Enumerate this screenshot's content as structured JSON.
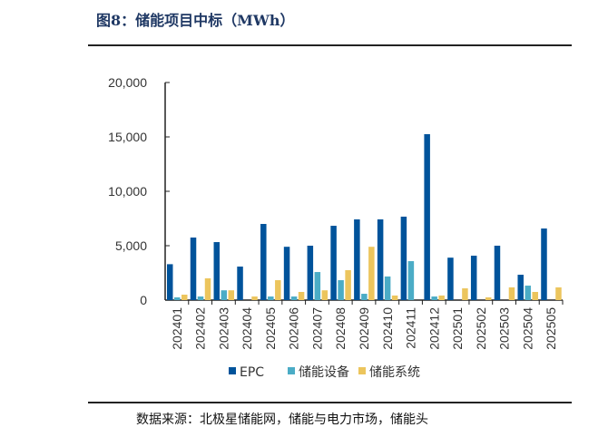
{
  "title": "图8：储能项目中标（MWh）",
  "source": "数据来源：北极星储能网，储能与电力市场，储能头",
  "colors": {
    "EPC": "#00539b",
    "储能设备": "#4bacc6",
    "储能系统": "#ecc55d"
  },
  "chart_data": {
    "type": "bar",
    "title": "储能项目中标（MWh）",
    "xlabel": "",
    "ylabel": "",
    "ylim": [
      0,
      20000
    ],
    "yticks": [
      0,
      5000,
      10000,
      15000,
      20000
    ],
    "ytick_labels": [
      "0",
      "5,000",
      "10,000",
      "15,000",
      "20,000"
    ],
    "grid": false,
    "legend": "bottom",
    "categories": [
      "202401",
      "202402",
      "202403",
      "202404",
      "202405",
      "202406",
      "202407",
      "202408",
      "202409",
      "202410",
      "202411",
      "202412",
      "202501",
      "202502",
      "202503",
      "202504",
      "202505"
    ],
    "series": [
      {
        "name": "EPC",
        "values": [
          3300,
          5750,
          5330,
          3080,
          7000,
          4900,
          5000,
          6830,
          7420,
          7420,
          7670,
          15250,
          3900,
          4080,
          5000,
          2330,
          6580
        ]
      },
      {
        "name": "储能设备",
        "values": [
          250,
          330,
          900,
          0,
          330,
          330,
          2580,
          1830,
          580,
          2170,
          3580,
          330,
          0,
          0,
          0,
          1330,
          0
        ]
      },
      {
        "name": "储能系统",
        "values": [
          500,
          2000,
          900,
          330,
          1830,
          750,
          900,
          2750,
          4900,
          420,
          0,
          420,
          1080,
          250,
          1170,
          750,
          1170
        ]
      }
    ]
  }
}
